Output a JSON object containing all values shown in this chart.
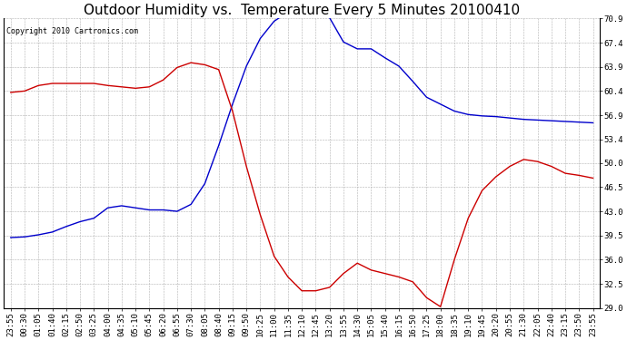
{
  "title": "Outdoor Humidity vs.  Temperature Every 5 Minutes 20100410",
  "copyright": "Copyright 2010 Cartronics.com",
  "y_ticks": [
    29.0,
    32.5,
    36.0,
    39.5,
    43.0,
    46.5,
    50.0,
    53.4,
    56.9,
    60.4,
    63.9,
    67.4,
    70.9
  ],
  "ylim": [
    29.0,
    70.9
  ],
  "background_color": "#ffffff",
  "grid_color": "#b0b0b0",
  "blue_color": "#0000cc",
  "red_color": "#cc0000",
  "title_fontsize": 11,
  "copyright_fontsize": 6,
  "tick_fontsize": 6.5,
  "x_labels": [
    "23:55",
    "00:30",
    "01:05",
    "01:40",
    "02:15",
    "02:50",
    "03:25",
    "04:00",
    "04:35",
    "05:10",
    "05:45",
    "06:20",
    "06:55",
    "07:30",
    "08:05",
    "08:40",
    "09:15",
    "09:50",
    "10:25",
    "11:00",
    "11:35",
    "12:10",
    "12:45",
    "13:20",
    "13:55",
    "14:30",
    "15:05",
    "15:40",
    "16:15",
    "16:50",
    "17:25",
    "18:00",
    "18:35",
    "19:10",
    "19:45",
    "20:20",
    "20:55",
    "21:30",
    "22:05",
    "22:40",
    "23:15",
    "23:50",
    "23:55"
  ],
  "blue_data": [
    39.2,
    39.3,
    39.6,
    40.0,
    40.8,
    41.5,
    42.0,
    43.5,
    43.8,
    43.5,
    43.2,
    43.2,
    43.0,
    44.0,
    47.0,
    52.5,
    58.5,
    64.0,
    68.0,
    70.5,
    71.8,
    72.5,
    71.8,
    71.0,
    67.5,
    66.5,
    66.5,
    65.2,
    64.0,
    61.8,
    59.5,
    58.5,
    57.5,
    57.0,
    56.8,
    56.7,
    56.5,
    56.3,
    56.2,
    56.1,
    56.0,
    55.9,
    55.8
  ],
  "red_data": [
    60.2,
    60.4,
    61.2,
    61.5,
    61.5,
    61.5,
    61.5,
    61.2,
    61.0,
    60.8,
    61.0,
    62.0,
    63.8,
    64.5,
    64.2,
    63.5,
    57.5,
    49.5,
    42.5,
    36.5,
    33.5,
    31.5,
    31.5,
    32.0,
    34.0,
    35.5,
    34.5,
    34.0,
    33.5,
    32.8,
    30.5,
    29.2,
    36.0,
    42.0,
    46.0,
    48.0,
    49.5,
    50.5,
    50.2,
    49.5,
    48.5,
    48.2,
    47.8
  ],
  "linewidth": 1.0
}
